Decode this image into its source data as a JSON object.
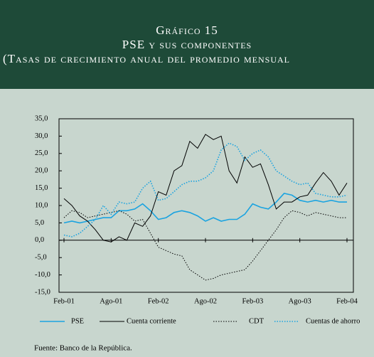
{
  "chart_data": {
    "type": "line",
    "title": "Gráfico 15",
    "subtitle": "PSE y sus componentes",
    "note": "(Tasas de crecimiento anual del promedio mensual",
    "source": "Fuente: Banco de la República.",
    "categories": [
      "Feb-01",
      null,
      null,
      null,
      null,
      null,
      "Ago-01",
      null,
      null,
      null,
      null,
      null,
      "Feb-02",
      null,
      null,
      null,
      null,
      null,
      "Ago-02",
      null,
      null,
      null,
      null,
      null,
      "Feb-03",
      null,
      null,
      null,
      null,
      null,
      "Ago-03",
      null,
      null,
      null,
      null,
      null,
      "Feb-04"
    ],
    "ylim": [
      -15,
      35
    ],
    "yticks": [
      {
        "value": 35,
        "label": "35,0"
      },
      {
        "value": 30,
        "label": "30,0"
      },
      {
        "value": 25,
        "label": "25,0"
      },
      {
        "value": 20,
        "label": "20,0"
      },
      {
        "value": 15,
        "label": "15,0"
      },
      {
        "value": 10,
        "label": "10,0"
      },
      {
        "value": 5,
        "label": "5,0"
      },
      {
        "value": 0,
        "label": "0,0"
      },
      {
        "value": -5,
        "label": "-5,0"
      },
      {
        "value": -10,
        "label": "-10,0"
      },
      {
        "value": -15,
        "label": "-15,0"
      }
    ],
    "series": [
      {
        "name": "PSE",
        "color": "#1aa3e0",
        "style": "solid",
        "values": [
          5,
          5.5,
          5,
          5.5,
          6,
          6.5,
          6.5,
          8.5,
          8.5,
          9,
          10.5,
          8.5,
          6,
          6.5,
          8,
          8.5,
          8,
          7,
          5.5,
          6.5,
          5.5,
          6,
          6,
          7.5,
          10.5,
          9.5,
          9,
          11,
          13.5,
          13,
          11.5,
          11,
          11.5,
          11,
          11.5,
          11,
          11
        ]
      },
      {
        "name": "Cuenta corriente",
        "color": "#000000",
        "style": "solid",
        "values": [
          12,
          10,
          7,
          5.5,
          3,
          0,
          -0.5,
          1,
          0,
          5,
          4,
          7,
          14,
          13,
          20,
          21.5,
          28.5,
          26.5,
          30.5,
          29,
          30,
          20,
          16.5,
          24,
          21,
          22,
          16,
          9,
          11,
          11,
          12.5,
          13,
          16.5,
          19.5,
          17,
          13,
          16.5
        ]
      },
      {
        "name": "CDT",
        "color": "#000000",
        "style": "dotted",
        "values": [
          6.5,
          8.5,
          8,
          6.5,
          7,
          7.5,
          8,
          8.5,
          7.5,
          5.5,
          6,
          2,
          -2,
          -3,
          -4,
          -4.5,
          -8.5,
          -10,
          -11.5,
          -11,
          -10,
          -9.5,
          -9,
          -8.5,
          -6,
          -3,
          0,
          3,
          6.5,
          8.5,
          8,
          7,
          8,
          7.5,
          7,
          6.5,
          6.5
        ]
      },
      {
        "name": "Cuentas de ahorro",
        "color": "#1aa3e0",
        "style": "dotted",
        "values": [
          1.5,
          1,
          2,
          4,
          6,
          10,
          7.5,
          11,
          10.5,
          11,
          15,
          17,
          11.5,
          12,
          14,
          16,
          17,
          17,
          18,
          20,
          26,
          28,
          27,
          23,
          25,
          26,
          24,
          20,
          18.5,
          17,
          16,
          16.5,
          13.5,
          13,
          12.5,
          12.5,
          13
        ]
      }
    ]
  }
}
